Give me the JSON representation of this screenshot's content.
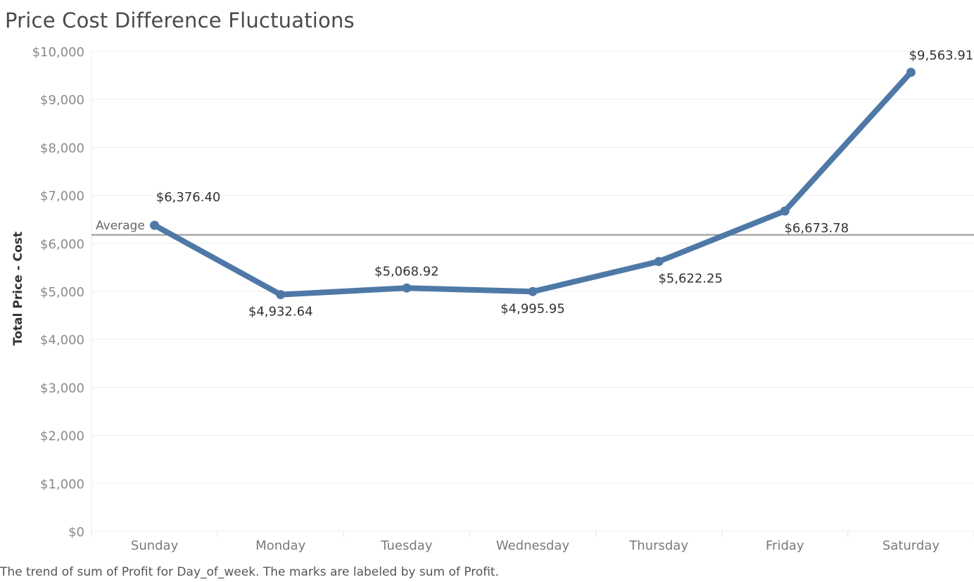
{
  "chart_data": {
    "type": "line",
    "title": "Price Cost Difference Fluctuations",
    "xlabel": "",
    "ylabel": "Total Price - Cost",
    "categories": [
      "Sunday",
      "Monday",
      "Tuesday",
      "Wednesday",
      "Thursday",
      "Friday",
      "Saturday"
    ],
    "series": [
      {
        "values": [
          6376.4,
          4932.64,
          5068.92,
          4995.95,
          5622.25,
          6673.78,
          9563.91
        ],
        "labels": [
          "$6,376.40",
          "$4,932.64",
          "$5,068.92",
          "$4,995.95",
          "$5,622.25",
          "$6,673.78",
          "$9,563.91"
        ]
      }
    ],
    "ylim": [
      0,
      10000
    ],
    "yticks": [
      0,
      1000,
      2000,
      3000,
      4000,
      5000,
      6000,
      7000,
      8000,
      9000,
      10000
    ],
    "ytick_labels": [
      "$0",
      "$1,000",
      "$2,000",
      "$3,000",
      "$4,000",
      "$5,000",
      "$6,000",
      "$7,000",
      "$8,000",
      "$9,000",
      "$10,000"
    ],
    "reference_line": {
      "label": "Average",
      "value": 6176.12
    },
    "grid": true,
    "line_color": "#4e79a7",
    "reference_color": "#a9a9a9"
  },
  "caption": "The trend of sum of Profit for Day_of_week.  The marks are labeled by sum of Profit."
}
